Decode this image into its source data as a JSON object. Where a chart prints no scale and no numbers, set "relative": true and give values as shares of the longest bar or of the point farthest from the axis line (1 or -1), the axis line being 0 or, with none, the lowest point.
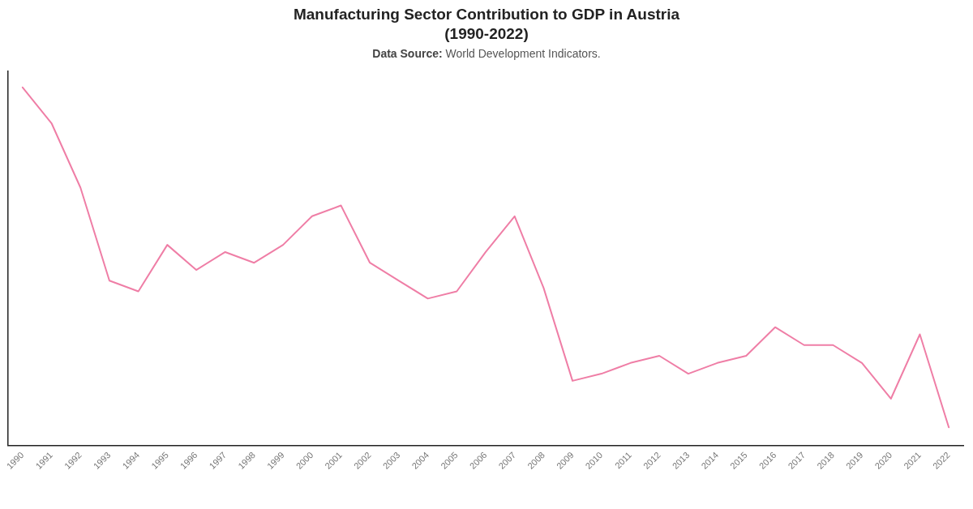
{
  "chart_data": {
    "type": "line",
    "title": "Manufacturing Sector Contribution to GDP in Austria\n(1990-2022)",
    "subtitle": "Data Source: World Development Indicators.",
    "categories": [
      "1990",
      "1991",
      "1992",
      "1993",
      "1994",
      "1995",
      "1996",
      "1997",
      "1998",
      "1999",
      "2000",
      "2001",
      "2002",
      "2003",
      "2004",
      "2005",
      "2006",
      "2007",
      "2008",
      "2009",
      "2010",
      "2011",
      "2012",
      "2013",
      "2014",
      "2015",
      "2016",
      "2017",
      "2018",
      "2019",
      "2020",
      "2021",
      "2022"
    ],
    "values": [
      1,
      0.9,
      0.72,
      0.46,
      0.43,
      0.56,
      0.49,
      0.54,
      0.51,
      0.56,
      0.64,
      0.67,
      0.51,
      0.46,
      0.41,
      0.43,
      0.54,
      0.64,
      0.44,
      0.18,
      0.2,
      0.23,
      0.25,
      0.2,
      0.23,
      0.25,
      0.33,
      0.28,
      0.28,
      0.23,
      0.13,
      0.31,
      0.05
    ],
    "color": "#ef7ea6",
    "relative": true
  }
}
